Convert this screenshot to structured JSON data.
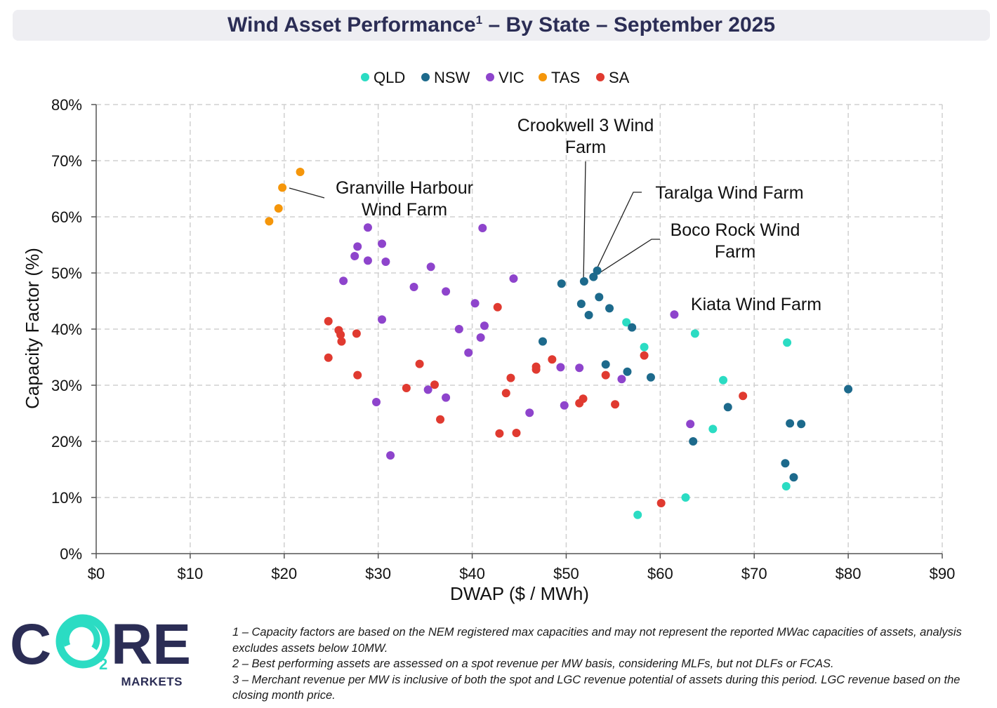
{
  "title": {
    "main": "Wind Asset Performance",
    "sup": "1",
    "rest": " – By State – September 2025"
  },
  "chart_data": {
    "type": "scatter",
    "title": "Wind Asset Performance¹ – By State – September 2025",
    "xlabel": "DWAP ($ / MWh)",
    "ylabel": "Capacity Factor (%)",
    "xlim": [
      0,
      90
    ],
    "ylim": [
      0,
      80
    ],
    "x_ticks": [
      0,
      10,
      20,
      30,
      40,
      50,
      60,
      70,
      80,
      90
    ],
    "x_tick_labels": [
      "$0",
      "$10",
      "$20",
      "$30",
      "$40",
      "$50",
      "$60",
      "$70",
      "$80",
      "$90"
    ],
    "y_ticks": [
      0,
      10,
      20,
      30,
      40,
      50,
      60,
      70,
      80
    ],
    "y_tick_labels": [
      "0%",
      "10%",
      "20%",
      "30%",
      "40%",
      "50%",
      "60%",
      "70%",
      "80%"
    ],
    "grid": true,
    "legend_position": "top-center",
    "series": [
      {
        "name": "QLD",
        "color": "#2bdcc3",
        "points": [
          [
            56.4,
            41.2
          ],
          [
            58.3,
            36.8
          ],
          [
            63.7,
            39.2
          ],
          [
            66.7,
            30.9
          ],
          [
            65.6,
            22.2
          ],
          [
            62.7,
            10.0
          ],
          [
            57.6,
            6.9
          ],
          [
            73.5,
            37.6
          ],
          [
            73.4,
            12.0
          ]
        ]
      },
      {
        "name": "NSW",
        "color": "#1d6a8c",
        "points": [
          [
            49.5,
            48.1
          ],
          [
            51.9,
            48.5
          ],
          [
            52.9,
            49.3
          ],
          [
            53.3,
            50.4
          ],
          [
            51.6,
            44.5
          ],
          [
            53.5,
            45.7
          ],
          [
            54.6,
            43.7
          ],
          [
            52.4,
            42.5
          ],
          [
            57.0,
            40.3
          ],
          [
            47.5,
            37.8
          ],
          [
            54.2,
            33.7
          ],
          [
            56.5,
            32.4
          ],
          [
            59.0,
            31.4
          ],
          [
            67.2,
            26.1
          ],
          [
            63.5,
            20.0
          ],
          [
            73.8,
            23.2
          ],
          [
            75.0,
            23.1
          ],
          [
            73.3,
            16.1
          ],
          [
            74.2,
            13.6
          ],
          [
            80.0,
            29.3
          ]
        ]
      },
      {
        "name": "VIC",
        "color": "#8e44cc",
        "points": [
          [
            28.9,
            58.1
          ],
          [
            41.1,
            58.0
          ],
          [
            27.8,
            54.7
          ],
          [
            27.5,
            53.0
          ],
          [
            28.9,
            52.2
          ],
          [
            30.4,
            55.2
          ],
          [
            30.8,
            52.0
          ],
          [
            26.3,
            48.6
          ],
          [
            35.6,
            51.1
          ],
          [
            33.8,
            47.5
          ],
          [
            37.2,
            46.7
          ],
          [
            44.4,
            49.0
          ],
          [
            40.3,
            44.6
          ],
          [
            30.4,
            41.7
          ],
          [
            38.6,
            40.0
          ],
          [
            41.3,
            40.6
          ],
          [
            40.9,
            38.5
          ],
          [
            39.6,
            35.8
          ],
          [
            49.4,
            33.2
          ],
          [
            51.4,
            33.1
          ],
          [
            55.9,
            31.1
          ],
          [
            35.3,
            29.2
          ],
          [
            37.2,
            27.8
          ],
          [
            29.8,
            27.0
          ],
          [
            46.1,
            25.1
          ],
          [
            49.8,
            26.4
          ],
          [
            63.2,
            23.1
          ],
          [
            61.5,
            42.6
          ],
          [
            31.3,
            17.5
          ]
        ]
      },
      {
        "name": "TAS",
        "color": "#f5960a",
        "points": [
          [
            21.7,
            68.0
          ],
          [
            19.8,
            65.2
          ],
          [
            19.4,
            61.5
          ],
          [
            18.4,
            59.2
          ]
        ]
      },
      {
        "name": "SA",
        "color": "#e03a30",
        "points": [
          [
            24.7,
            41.4
          ],
          [
            25.8,
            39.8
          ],
          [
            26.0,
            39.0
          ],
          [
            26.1,
            37.8
          ],
          [
            27.7,
            39.2
          ],
          [
            24.7,
            34.9
          ],
          [
            27.8,
            31.8
          ],
          [
            34.4,
            33.8
          ],
          [
            33.0,
            29.5
          ],
          [
            36.0,
            30.1
          ],
          [
            36.6,
            23.9
          ],
          [
            42.7,
            43.9
          ],
          [
            44.1,
            31.3
          ],
          [
            43.6,
            28.6
          ],
          [
            42.9,
            21.4
          ],
          [
            44.7,
            21.5
          ],
          [
            46.8,
            32.8
          ],
          [
            46.8,
            33.3
          ],
          [
            48.5,
            34.6
          ],
          [
            51.8,
            27.6
          ],
          [
            51.4,
            26.8
          ],
          [
            54.2,
            31.8
          ],
          [
            55.2,
            26.6
          ],
          [
            58.3,
            35.3
          ],
          [
            60.1,
            9.0
          ],
          [
            68.8,
            28.1
          ]
        ]
      }
    ],
    "annotations": [
      {
        "text": "Granville Harbour Wind Farm",
        "point": [
          19.8,
          65.2
        ]
      },
      {
        "text": "Crookwell 3 Wind Farm",
        "point": [
          51.9,
          48.5
        ]
      },
      {
        "text": "Taralga Wind Farm",
        "point": [
          53.3,
          50.4
        ]
      },
      {
        "text": "Boco Rock Wind Farm",
        "point": [
          52.9,
          49.3
        ]
      },
      {
        "text": "Kiata Wind Farm",
        "point": [
          61.5,
          42.6
        ]
      }
    ]
  },
  "logo": {
    "letters_1": "C",
    "letters_2": "RE",
    "subscript": "2",
    "tagline": "MARKETS",
    "color_dark": "#2b2d55",
    "color_accent": "#2bdcc3"
  },
  "footnotes": [
    "1 – Capacity factors are based on the NEM registered max capacities and may not represent the reported MWac capacities of assets, analysis excludes assets below 10MW.",
    "2 – Best performing assets are assessed on a spot revenue per MW basis, considering MLFs, but not DLFs or FCAS.",
    "3 – Merchant revenue per MW is inclusive of both the spot and LGC revenue potential of assets during this period. LGC revenue based on the closing month price."
  ]
}
